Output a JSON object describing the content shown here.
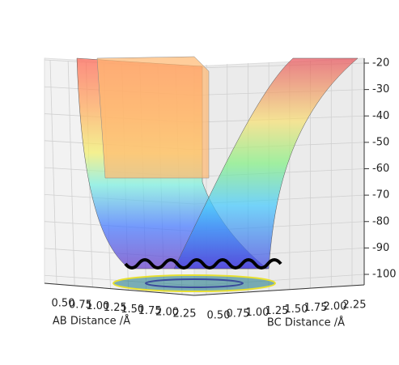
{
  "chart_data": {
    "type": "surface3d",
    "xlabel": "AB Distance /Å",
    "ylabel": "BC Distance /Å",
    "xlim": [
      0.5,
      2.25
    ],
    "ylim": [
      0.5,
      2.25
    ],
    "zlim": [
      -100,
      -20
    ],
    "xticks": [
      {
        "value": 0.5,
        "label": "0.50"
      },
      {
        "value": 0.75,
        "label": "0.75"
      },
      {
        "value": 1.0,
        "label": "1.00"
      },
      {
        "value": 1.25,
        "label": "1.25"
      },
      {
        "value": 1.5,
        "label": "1.50"
      },
      {
        "value": 1.75,
        "label": "1.75"
      },
      {
        "value": 2.0,
        "label": "2.00"
      },
      {
        "value": 2.25,
        "label": "2.25"
      }
    ],
    "yticks": [
      {
        "value": 0.5,
        "label": "0.50"
      },
      {
        "value": 0.75,
        "label": "0.75"
      },
      {
        "value": 1.0,
        "label": "1.00"
      },
      {
        "value": 1.25,
        "label": "1.25"
      },
      {
        "value": 1.5,
        "label": "1.50"
      },
      {
        "value": 1.75,
        "label": "1.75"
      },
      {
        "value": 2.0,
        "label": "2.00"
      },
      {
        "value": 2.25,
        "label": "2.25"
      }
    ],
    "zticks": [
      -20,
      -30,
      -40,
      -50,
      -60,
      -70,
      -80,
      -90,
      -100
    ],
    "grid": true
  }
}
